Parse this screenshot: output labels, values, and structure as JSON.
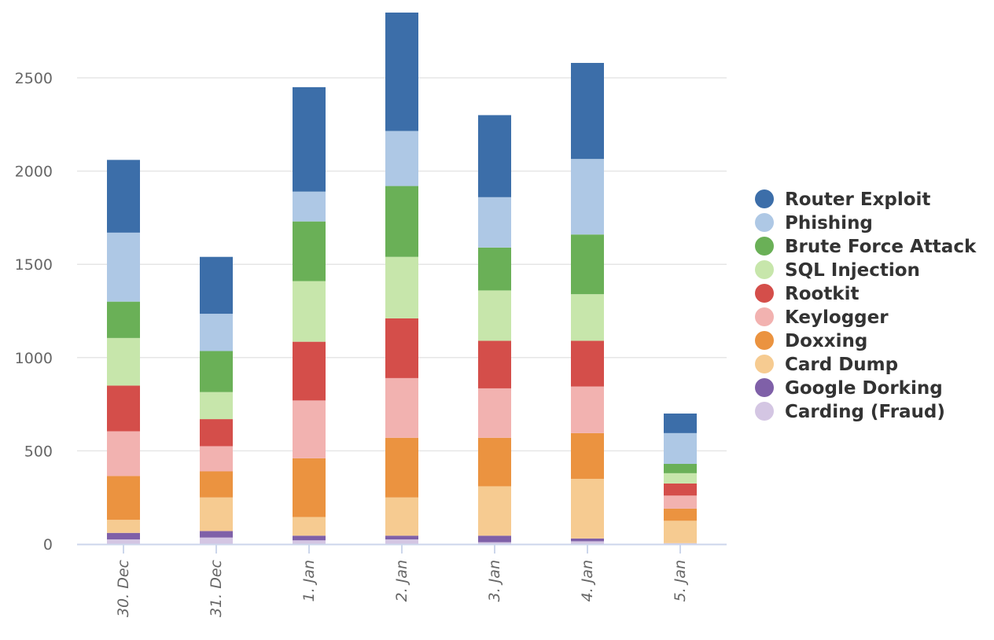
{
  "chart_data": {
    "type": "bar",
    "stacked": true,
    "title": "",
    "xlabel": "",
    "ylabel": "",
    "categories": [
      "30. Dec",
      "31. Dec",
      "1. Jan",
      "2. Jan",
      "3. Jan",
      "4. Jan",
      "5. Jan"
    ],
    "ylim": [
      0,
      2850
    ],
    "yticks": [
      0,
      500,
      1000,
      1500,
      2000,
      2500
    ],
    "grid": true,
    "legend_position": "right",
    "series": [
      {
        "name": "Carding (Fraud)",
        "color": "#d4c6e3",
        "values": [
          25,
          35,
          20,
          25,
          10,
          15,
          5
        ]
      },
      {
        "name": "Google Dorking",
        "color": "#7f60a8",
        "values": [
          35,
          35,
          25,
          20,
          35,
          15,
          0
        ]
      },
      {
        "name": "Card Dump",
        "color": "#f6cb91",
        "values": [
          70,
          180,
          100,
          205,
          265,
          320,
          120
        ]
      },
      {
        "name": "Doxxing",
        "color": "#eb9340",
        "values": [
          235,
          140,
          315,
          320,
          260,
          245,
          65
        ]
      },
      {
        "name": "Keylogger",
        "color": "#f2b2b0",
        "values": [
          240,
          135,
          310,
          320,
          265,
          250,
          70
        ]
      },
      {
        "name": "Rootkit",
        "color": "#d44e4a",
        "values": [
          245,
          145,
          315,
          320,
          255,
          245,
          65
        ]
      },
      {
        "name": "SQL Injection",
        "color": "#c7e6ab",
        "values": [
          255,
          145,
          325,
          330,
          270,
          250,
          55
        ]
      },
      {
        "name": "Brute Force Attack",
        "color": "#6ab057",
        "values": [
          195,
          220,
          320,
          380,
          230,
          320,
          50
        ]
      },
      {
        "name": "Phishing",
        "color": "#aec8e5",
        "values": [
          370,
          200,
          160,
          295,
          270,
          405,
          165
        ]
      },
      {
        "name": "Router Exploit",
        "color": "#3c6ea9",
        "values": [
          390,
          305,
          560,
          635,
          440,
          515,
          105
        ]
      }
    ],
    "legend_order": [
      "Router Exploit",
      "Phishing",
      "Brute Force Attack",
      "SQL Injection",
      "Rootkit",
      "Keylogger",
      "Doxxing",
      "Card Dump",
      "Google Dorking",
      "Carding (Fraud)"
    ]
  }
}
